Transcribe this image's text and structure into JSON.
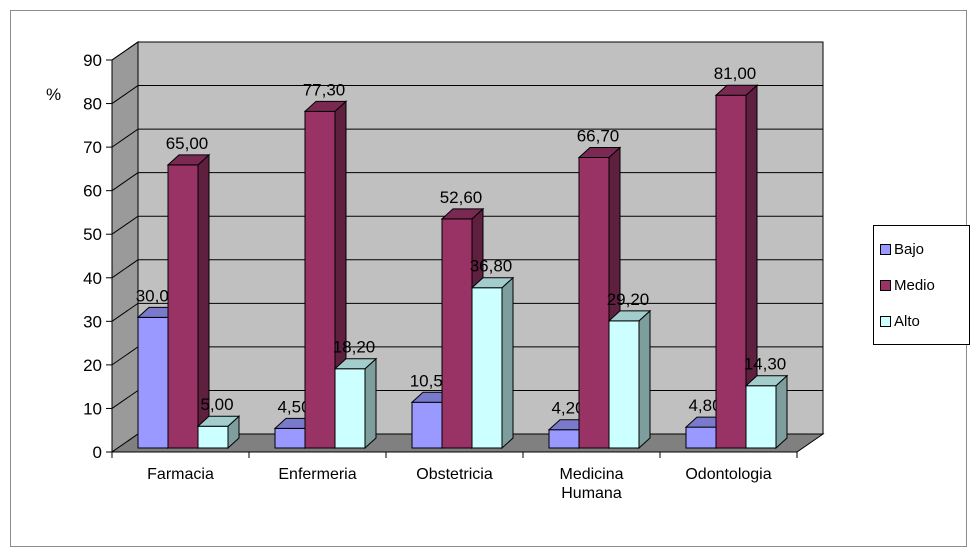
{
  "chart_data": {
    "type": "bar",
    "categories": [
      "Farmacia",
      "Enfermeria",
      "Obstetricia",
      "Medicina Humana",
      "Odontologia"
    ],
    "category_lines": [
      [
        "Farmacia"
      ],
      [
        "Enfermeria"
      ],
      [
        "Obstetricia"
      ],
      [
        "Medicina",
        "Humana"
      ],
      [
        "Odontologia"
      ]
    ],
    "series": [
      {
        "name": "Bajo",
        "values": [
          30.0,
          4.5,
          10.5,
          4.2,
          4.8
        ],
        "labels": [
          "30,00",
          "4,50",
          "10,50",
          "4,20",
          "4,80"
        ],
        "color": "#9999ff"
      },
      {
        "name": "Medio",
        "values": [
          65.0,
          77.3,
          52.6,
          66.7,
          81.0
        ],
        "labels": [
          "65,00",
          "77,30",
          "52,60",
          "66,70",
          "81,00"
        ],
        "color": "#993366"
      },
      {
        "name": "Alto",
        "values": [
          5.0,
          18.2,
          36.8,
          29.2,
          14.3
        ],
        "labels": [
          "5,00",
          "18,20",
          "36,80",
          "29,20",
          "14,30"
        ],
        "color": "#ccffff"
      }
    ],
    "ylabel": "%",
    "ylim": [
      0,
      90
    ],
    "yticks": [
      0,
      10,
      20,
      30,
      40,
      50,
      60,
      70,
      80,
      90
    ],
    "grid": true,
    "legend": "right",
    "wall_color": "#c0c0c0",
    "floor_color": "#808080"
  }
}
